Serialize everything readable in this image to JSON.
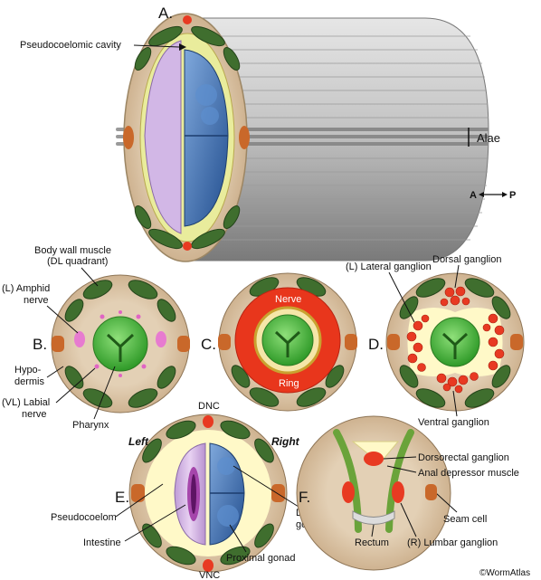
{
  "panels": {
    "A": {
      "letter": "A.",
      "labels": {
        "pseudocoelomic_cavity": "Pseudocoelomic cavity",
        "alae": "Alae",
        "axis_a": "A",
        "axis_p": "P"
      }
    },
    "B": {
      "letter": "B.",
      "labels": {
        "body_wall_muscle_1": "Body wall muscle",
        "body_wall_muscle_2": "(DL quadrant)",
        "amphid_1": "(L) Amphid",
        "amphid_2": "nerve",
        "hypodermis_1": "Hypo-",
        "hypodermis_2": "dermis",
        "labial_1": "(VL) Labial",
        "labial_2": "nerve",
        "pharynx": "Pharynx"
      }
    },
    "C": {
      "letter": "C.",
      "labels": {
        "nerve": "Nerve",
        "ring": "Ring"
      }
    },
    "D": {
      "letter": "D.",
      "labels": {
        "lateral_ganglion": "(L) Lateral ganglion",
        "dorsal_ganglion": "Dorsal ganglion",
        "ventral_ganglion": "Ventral ganglion"
      }
    },
    "E": {
      "letter": "E.",
      "labels": {
        "dnc": "DNC",
        "left": "Left",
        "right": "Right",
        "pseudocoelom": "Pseudocoelom",
        "intestine": "Intestine",
        "distal_1": "Distal",
        "distal_2": "gonad",
        "proximal_gonad": "Proximal gonad",
        "vnc": "VNC"
      }
    },
    "F": {
      "letter": "F.",
      "labels": {
        "dorsorectal_ganglion": "Dorsorectal ganglion",
        "anal_depressor": "Anal depressor muscle",
        "seam_cell": "Seam cell",
        "rectum": "Rectum",
        "lumbar_ganglion": "(R) Lumbar ganglion"
      }
    }
  },
  "copyright": "©WormAtlas",
  "colors": {
    "tissue": "#d9c3a6",
    "muscle": "#3f6e2e",
    "seam": "#c9682a",
    "pseudocoelom": "#fff9c8",
    "pharynx": "#5cbf45",
    "nerve_ring": "#e8361c",
    "ganglion": "#e83a22",
    "intestine": "#d7b8e8",
    "gonad": "#3c6db0",
    "cuticle_gray": "#a8a8a8"
  }
}
